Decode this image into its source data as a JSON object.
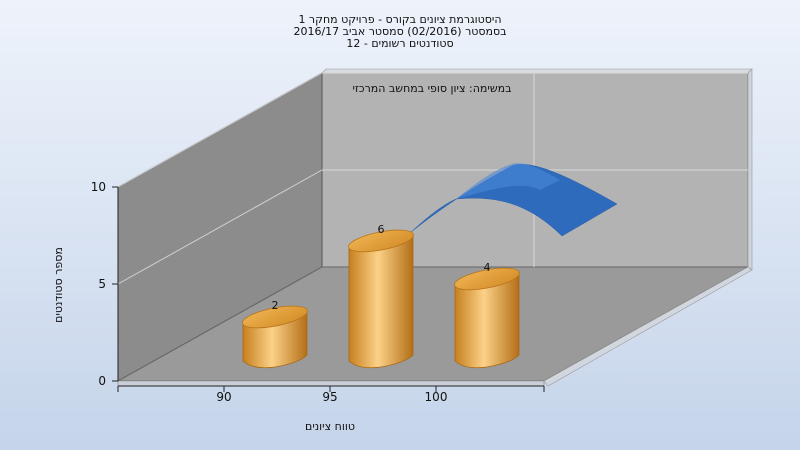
{
  "chart_data": {
    "type": "bar",
    "title_lines": [
      "היסטוגרמת ציונים בקורס - פרויקט מחקר 1",
      "בסמסטר (02/2016) סמסטר אביב 2016/17",
      "סטודנטים רשומים - 12"
    ],
    "annotation": "במשימה: ציון סופי במחשב המרכזי",
    "categories": [
      "90",
      "95",
      "100"
    ],
    "values": [
      2,
      6,
      4
    ],
    "data_labels": [
      "2",
      "6",
      "4"
    ],
    "xlabel": "טווח ציונים",
    "ylabel": "מספר סטודנטים",
    "ylim": [
      0,
      10
    ],
    "yticks": [
      "0",
      "5",
      "10"
    ],
    "grid": true,
    "bar_style": "3d-cylinder",
    "curve_series_color": "#2f6bbd",
    "bar_color": "#e8a83c",
    "back_wall_color": "#b3b3b3",
    "side_wall_color": "#8c8c8c",
    "floor_color": "#9a9a9a"
  }
}
